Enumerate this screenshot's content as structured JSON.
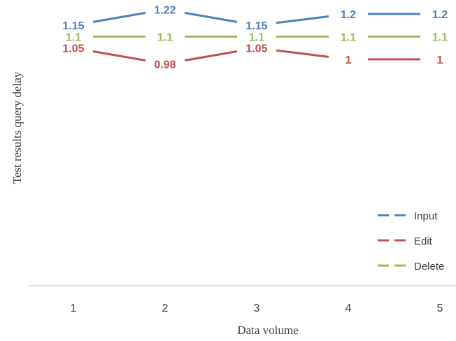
{
  "chart_data": {
    "type": "line",
    "xlabel": "Data volume",
    "ylabel": "Test results query delay",
    "x": [
      "1",
      "2",
      "3",
      "4",
      "5"
    ],
    "ylim": [
      0,
      1.3
    ],
    "grid": false,
    "legend_position": "bottom-right",
    "series": [
      {
        "name": "Input",
        "values": [
          1.15,
          1.22,
          1.15,
          1.2,
          1.2
        ],
        "labels": [
          "1.15",
          "1.22",
          "1.15",
          "1.2",
          "1.2"
        ],
        "color": "#4F81BD"
      },
      {
        "name": "Edit",
        "values": [
          1.05,
          0.98,
          1.05,
          1,
          1
        ],
        "labels": [
          "1.05",
          "0.98",
          "1.05",
          "1",
          "1"
        ],
        "color": "#C0504D"
      },
      {
        "name": "Delete",
        "values": [
          1.1,
          1.1,
          1.1,
          1.1,
          1.1
        ],
        "labels": [
          "1.1",
          "1.1",
          "1.1",
          "1.1",
          "1.1"
        ],
        "color": "#9BBB59"
      }
    ]
  }
}
